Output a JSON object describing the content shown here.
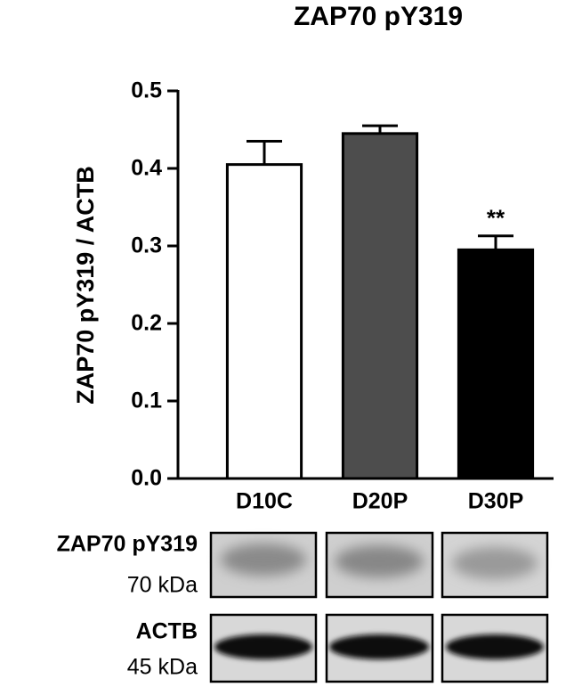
{
  "chart_data": {
    "type": "bar",
    "title": "ZAP70 pY319",
    "y_label": "ZAP70 pY319 / ACTB",
    "categories": [
      "D10C",
      "D20P",
      "D30P"
    ],
    "values": [
      0.405,
      0.445,
      0.295
    ],
    "errors": [
      0.03,
      0.01,
      0.018
    ],
    "colors": [
      "#ffffff",
      "#4d4d4d",
      "#000000"
    ],
    "ylim": [
      0,
      0.5
    ],
    "yticks": [
      {
        "value": 0,
        "label": "0.0"
      },
      0.1,
      0.2,
      0.3,
      0.4,
      0.5
    ],
    "annotations": [
      "**"
    ]
  },
  "blots": [
    {
      "protein": "ZAP70 pY319",
      "size": "70 kDa"
    },
    {
      "protein": "ACTB",
      "size": "45 kDa"
    }
  ]
}
